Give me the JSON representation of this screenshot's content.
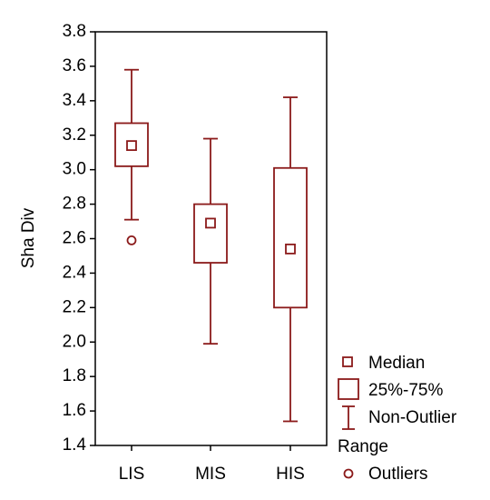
{
  "chart_data": {
    "type": "box",
    "y_label": "Sha Div",
    "categories": [
      "LIS",
      "MIS",
      "HIS"
    ],
    "color": "#8b1a1a",
    "series": [
      {
        "whisker_low": 2.71,
        "q1": 3.02,
        "median": 3.14,
        "q3": 3.27,
        "whisker_high": 3.58,
        "outliers": [
          2.59
        ]
      },
      {
        "whisker_low": 1.99,
        "q1": 2.46,
        "median": 2.69,
        "q3": 2.8,
        "whisker_high": 3.18,
        "outliers": []
      },
      {
        "whisker_low": 1.54,
        "q1": 2.2,
        "median": 2.54,
        "q3": 3.01,
        "whisker_high": 3.42,
        "outliers": []
      }
    ],
    "ylim": [
      1.4,
      3.8
    ],
    "yticks": [
      1.4,
      1.6,
      1.8,
      {
        "value": 2,
        "label": "2.0"
      },
      2.2,
      2.4,
      2.6,
      2.8,
      {
        "value": 3,
        "label": "3.0"
      },
      3.2,
      3.4,
      3.6,
      3.8
    ],
    "legend": {
      "median": "Median",
      "box": "25%-75%",
      "whisker": [
        "Non-Outlier",
        "Range"
      ],
      "outliers": "Outliers"
    }
  }
}
